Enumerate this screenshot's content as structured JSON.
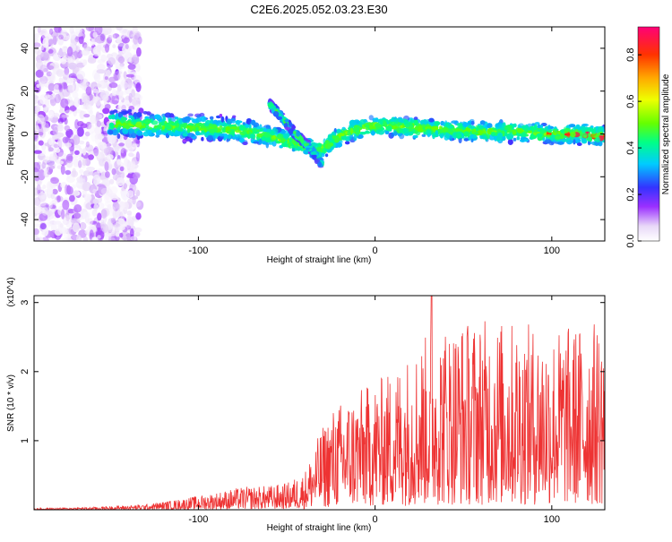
{
  "title": "C2E6.2025.052.03.23.E30",
  "chart_data": [
    {
      "type": "heatmap",
      "xlabel": "Height of straight line (km)",
      "ylabel": "Frequency (Hz)",
      "xlim": [
        -193,
        130
      ],
      "ylim": [
        -50,
        50
      ],
      "xticks": [
        -100,
        0,
        100
      ],
      "xtick_labels": [
        "-100",
        "0",
        "100"
      ],
      "yticks": [
        -40,
        -20,
        0,
        20,
        40
      ],
      "ytick_labels": [
        "-40",
        "-20",
        "0",
        "20",
        "40"
      ],
      "colorbar": {
        "label": "Normalized spectral amplitude",
        "range": [
          0,
          0.92
        ],
        "ticks": [
          0.0,
          0.2,
          0.4,
          0.6,
          0.8
        ],
        "tick_labels": [
          "0.0",
          "0.2",
          "0.4",
          "0.6",
          "0.8"
        ]
      },
      "ridge": {
        "x": [
          -150,
          -130,
          -100,
          -80,
          -65,
          -55,
          -45,
          -38,
          -32,
          -28,
          -24,
          -20,
          -15,
          -10,
          0,
          20,
          40,
          60,
          80,
          100,
          115,
          130
        ],
        "y": [
          5,
          4,
          3,
          2,
          0,
          -2,
          -4,
          -6,
          -8,
          -6,
          -3,
          -1,
          1,
          2,
          4,
          3,
          2,
          1,
          1,
          0,
          0,
          -1
        ]
      },
      "branch": {
        "x": [
          -60,
          -55,
          -50,
          -45,
          -40,
          -35,
          -32,
          -30
        ],
        "y": [
          14,
          10,
          5,
          0,
          -4,
          -8,
          -12,
          -14
        ]
      }
    },
    {
      "type": "line",
      "xlabel": "Height of straight line (km)",
      "ylabel": "SNR (10 * v/v)",
      "scale_label": "(x10^4)",
      "xlim": [
        -193,
        130
      ],
      "ylim": [
        0,
        3.1
      ],
      "xticks": [
        -100,
        0,
        100
      ],
      "xtick_labels": [
        "-100",
        "0",
        "100"
      ],
      "yticks": [
        1,
        2,
        3
      ],
      "ytick_labels": [
        "1",
        "2",
        "3"
      ],
      "series_color": "#ee3333",
      "envelope": {
        "x": [
          -193,
          -160,
          -130,
          -110,
          -90,
          -75,
          -60,
          -50,
          -40,
          -32,
          -25,
          -15,
          -5,
          5,
          15,
          25,
          35,
          50,
          65,
          80,
          100,
          115,
          130
        ],
        "y": [
          0.01,
          0.02,
          0.04,
          0.08,
          0.13,
          0.17,
          0.18,
          0.2,
          0.28,
          0.55,
          0.75,
          0.85,
          0.92,
          1.0,
          1.12,
          1.25,
          1.38,
          1.42,
          1.42,
          1.4,
          1.35,
          1.38,
          1.42
        ]
      }
    }
  ]
}
